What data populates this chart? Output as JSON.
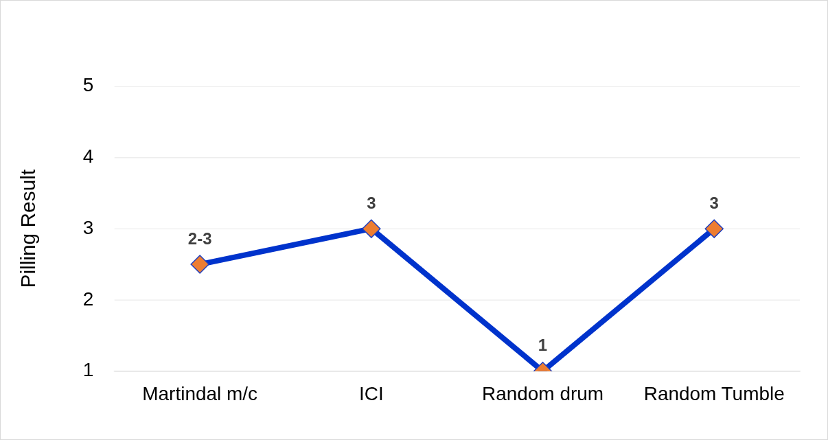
{
  "chart_data": {
    "type": "line",
    "ylabel": "Pilling Result",
    "categories": [
      "Martindal m/c",
      "ICI",
      "Random drum",
      "Random Tumble"
    ],
    "series": [
      {
        "color": "#0033cc",
        "values": [
          2.5,
          3,
          1,
          3
        ],
        "value_labels": [
          "2-3",
          "3",
          "1",
          "3"
        ]
      }
    ],
    "ylim": [
      1,
      5
    ],
    "yticks": [
      1,
      2,
      3,
      4,
      5
    ],
    "grid": "y",
    "legend": false,
    "marker": "diamond",
    "line_style": "solid"
  }
}
